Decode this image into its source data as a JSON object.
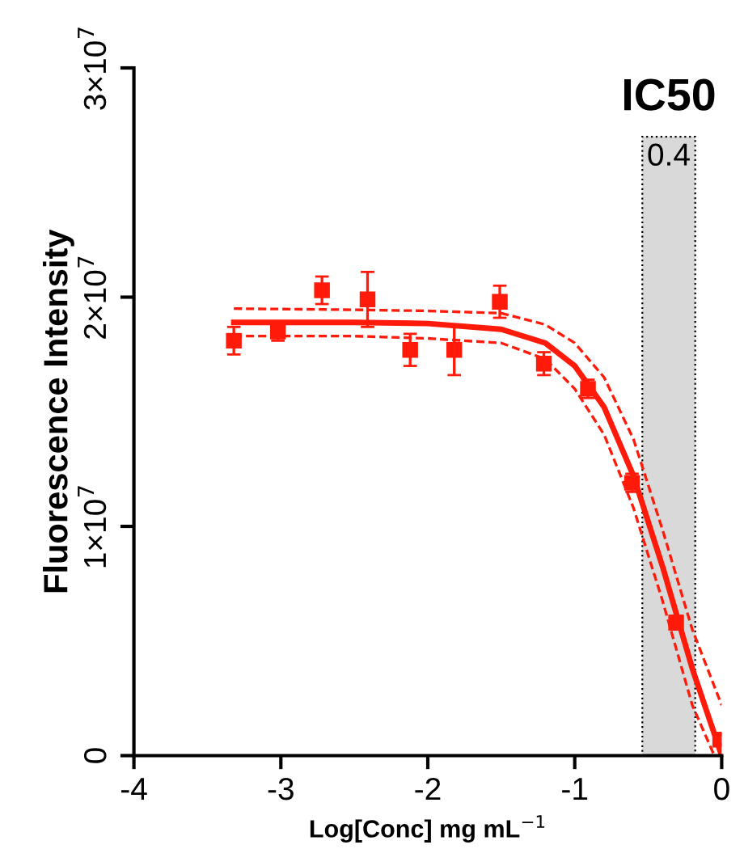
{
  "chart_data": {
    "type": "scatter",
    "xlabel": "Log[Conc] mg mL$^{−1}$",
    "ylabel": "Fluorescence Intensity",
    "xlim": [
      -4,
      0
    ],
    "xticks": [
      -4,
      -3,
      -2,
      -1,
      0
    ],
    "ylim": [
      0,
      30000000
    ],
    "yticks": [
      0,
      {
        "value": 10000000,
        "label": "1×10$^{7}$"
      },
      {
        "value": 20000000,
        "label": "2×10$^{7}$"
      },
      {
        "value": 30000000,
        "label": "3×10$^{7}$"
      }
    ],
    "grid": false,
    "legend": false,
    "series": [
      {
        "color": "#ff1a0a",
        "marker": "square",
        "x": [
          -3.32,
          -3.02,
          -2.72,
          -2.41,
          -2.12,
          -1.82,
          -1.51,
          -1.21,
          -0.91,
          -0.61,
          -0.31,
          -0.01
        ],
        "values": [
          18100000,
          18500000,
          20300000,
          19900000,
          17700000,
          17700000,
          19800000,
          17100000,
          16000000,
          11900000,
          5800000,
          700000
        ],
        "errors": [
          600000,
          400000,
          600000,
          1200000,
          700000,
          1100000,
          700000,
          500000,
          400000,
          400000,
          300000,
          200000
        ]
      },
      {
        "type": "line",
        "color": "#ff1a0a",
        "line_style": "solid",
        "x": [
          -3.32,
          -2.5,
          -2.0,
          -1.5,
          -1.2,
          -1.0,
          -0.8,
          -0.6,
          -0.4,
          -0.2,
          0.0
        ],
        "values": [
          18900000,
          18900000,
          18850000,
          18600000,
          18000000,
          17000000,
          15200000,
          12200000,
          8200000,
          3800000,
          0
        ]
      },
      {
        "type": "line",
        "color": "#ff1a0a",
        "line_style": "dashed",
        "x": [
          -3.32,
          -2.5,
          -2.0,
          -1.5,
          -1.2,
          -1.0,
          -0.8,
          -0.6,
          -0.4,
          -0.2,
          0.0
        ],
        "values": [
          19500000,
          19450000,
          19400000,
          19300000,
          18800000,
          18000000,
          16500000,
          13800000,
          9800000,
          5500000,
          2200000
        ]
      },
      {
        "type": "line",
        "color": "#ff1a0a",
        "line_style": "dashed",
        "x": [
          -3.32,
          -2.5,
          -2.0,
          -1.5,
          -1.2,
          -1.0,
          -0.8,
          -0.6,
          -0.4,
          -0.2,
          -0.05
        ],
        "values": [
          18300000,
          18300000,
          18200000,
          18000000,
          17300000,
          16000000,
          14000000,
          10800000,
          6700000,
          2200000,
          0
        ]
      }
    ],
    "bands": [
      {
        "axis": "x",
        "from": -0.54,
        "to": -0.18,
        "label": "0.4",
        "color": "#d9d9d9"
      }
    ],
    "annotations": [
      "IC50"
    ]
  }
}
